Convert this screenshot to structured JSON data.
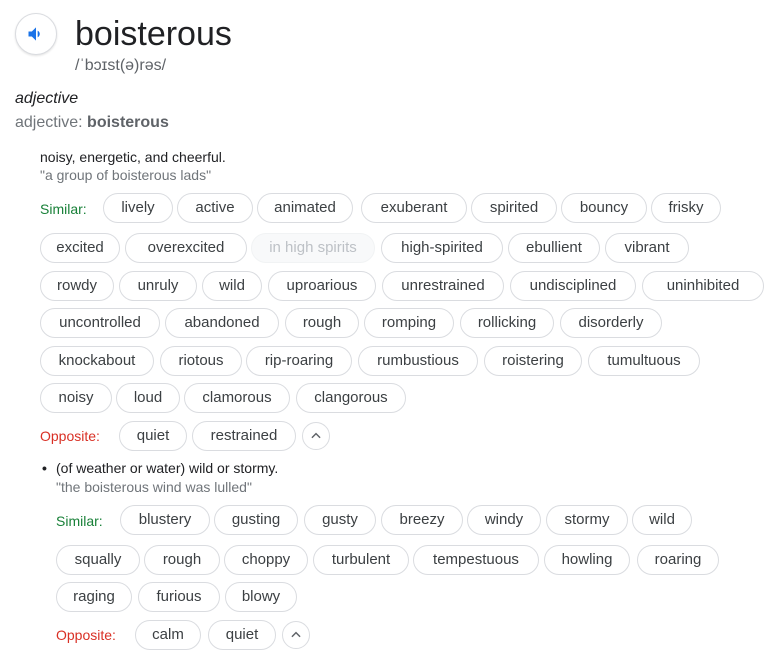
{
  "entry": {
    "word": "boisterous",
    "phonetic": "/ˈbɔɪst(ə)rəs/",
    "part_of_speech": "adjective",
    "form_prefix": "adjective: ",
    "form_word": "boisterous",
    "speaker_icon": "speaker-icon"
  },
  "sense1": {
    "definition": "noisy, energetic, and cheerful.",
    "example": "\"a group of boisterous lads\"",
    "similar_label": "Similar:",
    "similar": [
      "lively",
      "active",
      "animated",
      "exuberant",
      "spirited",
      "bouncy",
      "frisky",
      "excited",
      "overexcited",
      "in high spirits",
      "high-spirited",
      "ebullient",
      "vibrant",
      "rowdy",
      "unruly",
      "wild",
      "uproarious",
      "unrestrained",
      "undisciplined",
      "uninhibited",
      "uncontrolled",
      "abandoned",
      "rough",
      "romping",
      "rollicking",
      "disorderly",
      "knockabout",
      "riotous",
      "rip-roaring",
      "rumbustious",
      "roistering",
      "tumultuous",
      "noisy",
      "loud",
      "clamorous",
      "clangorous"
    ],
    "opposite_label": "Opposite:",
    "opposite": [
      "quiet",
      "restrained"
    ]
  },
  "sense2": {
    "bullet": "•",
    "definition": "(of weather or water) wild or stormy.",
    "example": "\"the boisterous wind was lulled\"",
    "similar_label": "Similar:",
    "similar": [
      "blustery",
      "gusting",
      "gusty",
      "breezy",
      "windy",
      "stormy",
      "wild",
      "squally",
      "rough",
      "choppy",
      "turbulent",
      "tempestuous",
      "howling",
      "roaring",
      "raging",
      "furious",
      "blowy"
    ],
    "opposite_label": "Opposite:",
    "opposite": [
      "calm",
      "quiet"
    ]
  },
  "colors": {
    "similar": "#188038",
    "opposite": "#d93025",
    "accent": "#1a73e8",
    "muted": "#70757a"
  }
}
